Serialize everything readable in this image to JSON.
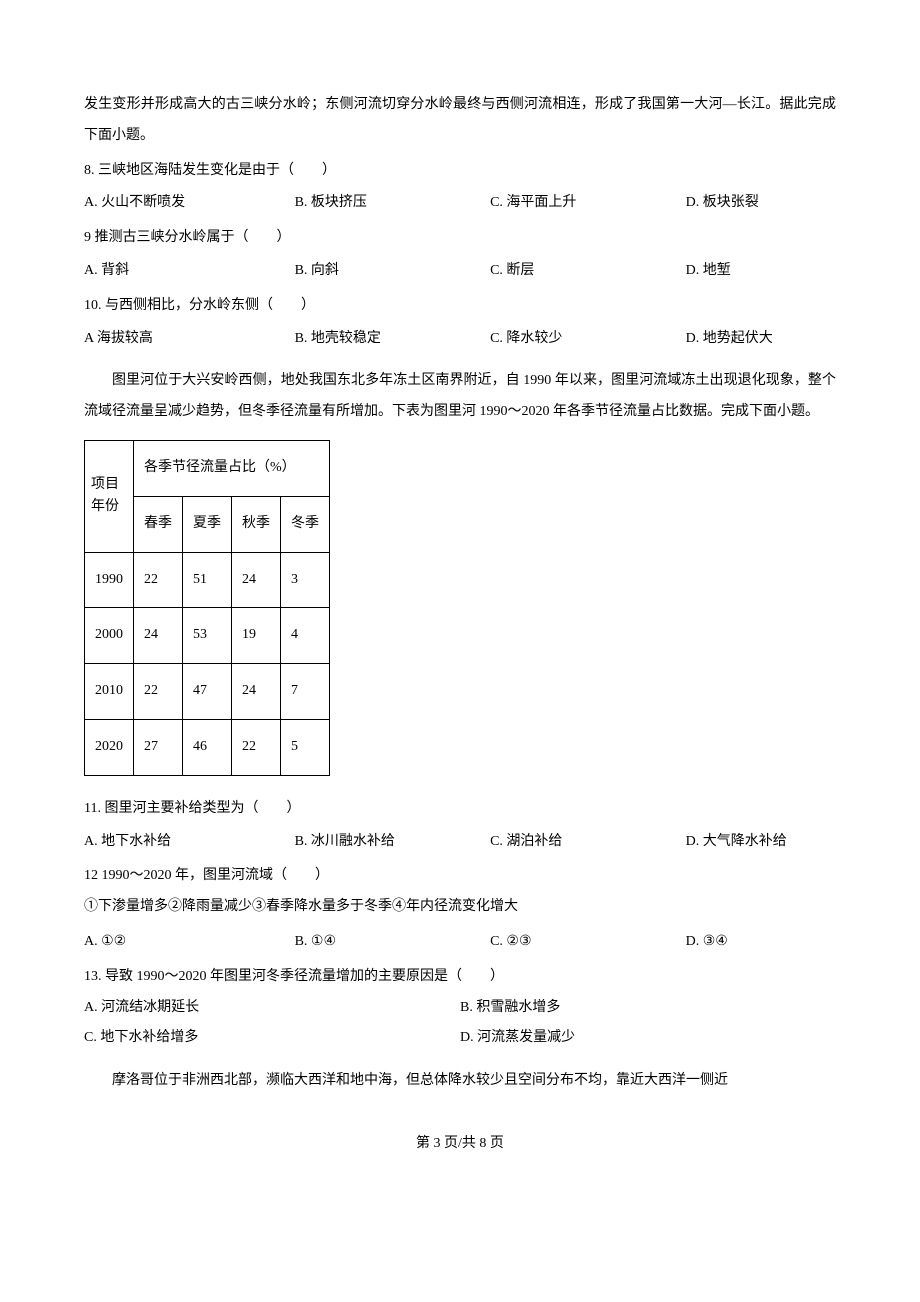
{
  "intro_p1": "发生变形并形成高大的古三峡分水岭；东侧河流切穿分水岭最终与西侧河流相连，形成了我国第一大河—长江。据此完成下面小题。",
  "q8": {
    "text": "8. 三峡地区海陆发生变化是由于（　　）",
    "A": "A. 火山不断喷发",
    "B": "B. 板块挤压",
    "C": "C. 海平面上升",
    "D": "D. 板块张裂"
  },
  "q9": {
    "text": "9  推测古三峡分水岭属于（　　）",
    "A": "A. 背斜",
    "B": "B. 向斜",
    "C": "C. 断层",
    "D": "D. 地堑"
  },
  "q10": {
    "text": "10. 与西侧相比，分水岭东侧（　　）",
    "A": "A  海拔较高",
    "B": "B. 地壳较稳定",
    "C": "C. 降水较少",
    "D": "D. 地势起伏大"
  },
  "intro_p2": "图里河位于大兴安岭西侧，地处我国东北多年冻土区南界附近，自 1990 年以来，图里河流域冻土出现退化现象，整个流域径流量呈减少趋势，但冬季径流量有所增加。下表为图里河 1990～2020 年各季节径流量占比数据。完成下面小题。",
  "table": {
    "header_left_l1": "项目",
    "header_left_l2": "年份",
    "header_span": "各季节径流量占比（%）",
    "columns": [
      "春季",
      "夏季",
      "秋季",
      "冬季"
    ],
    "rows": [
      {
        "year": "1990",
        "values": [
          "22",
          "51",
          "24",
          "3"
        ]
      },
      {
        "year": "2000",
        "values": [
          "24",
          "53",
          "19",
          "4"
        ]
      },
      {
        "year": "2010",
        "values": [
          "22",
          "47",
          "24",
          "7"
        ]
      },
      {
        "year": "2020",
        "values": [
          "27",
          "46",
          "22",
          "5"
        ]
      }
    ],
    "border_color": "#000000",
    "background_color": "#ffffff",
    "font_size": 14
  },
  "q11": {
    "text": "11. 图里河主要补给类型为（　　）",
    "A": "A. 地下水补给",
    "B": "B. 冰川融水补给",
    "C": "C. 湖泊补给",
    "D": "D. 大气降水补给"
  },
  "q12": {
    "text": "12  1990～2020 年，图里河流域（　　）",
    "stmt": "①下渗量增多②降雨量减少③春季降水量多于冬季④年内径流变化增大",
    "A": "A. ①②",
    "B": "B. ①④",
    "C": "C. ②③",
    "D": "D. ③④"
  },
  "q13": {
    "text": "13. 导致 1990～2020 年图里河冬季径流量增加的主要原因是（　　）",
    "A": "A. 河流结冰期延长",
    "B": "B. 积雪融水增多",
    "C": "C. 地下水补给增多",
    "D": "D. 河流蒸发量减少"
  },
  "intro_p3": "摩洛哥位于非洲西北部，濒临大西洋和地中海，但总体降水较少且空间分布不均，靠近大西洋一侧近",
  "footer": "第 3 页/共 8 页"
}
